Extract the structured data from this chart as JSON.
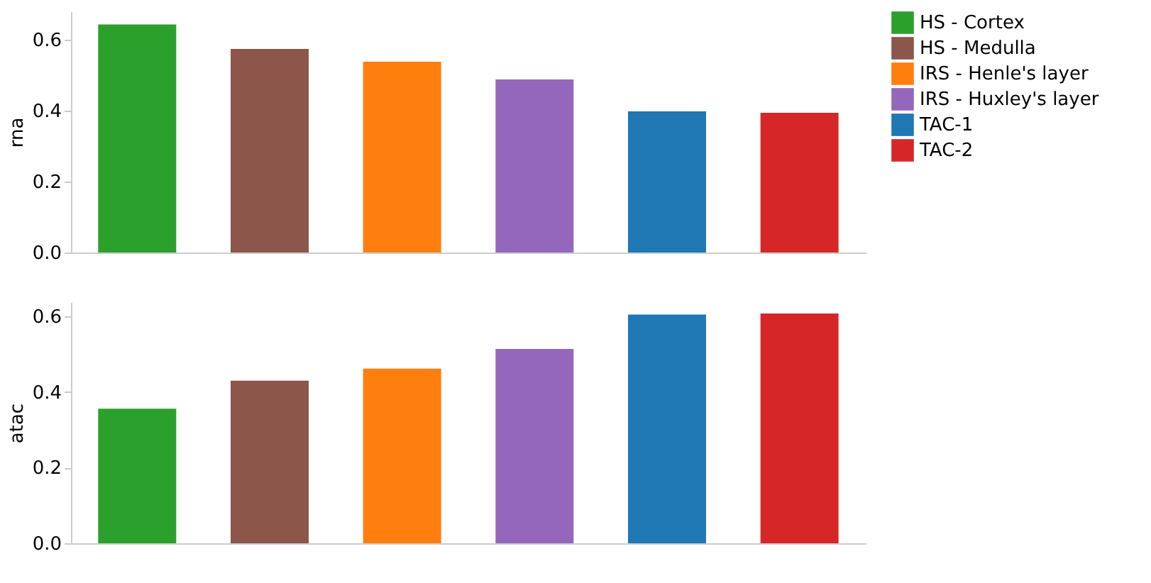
{
  "chart_data": [
    {
      "type": "bar",
      "ylabel": "rna",
      "categories": [
        null,
        null,
        null,
        null,
        null,
        null
      ],
      "series": [
        {
          "name": "HS - Cortex",
          "color": "#2ca02c",
          "values": [
            0.643,
            null,
            null,
            null,
            null,
            null
          ]
        },
        {
          "name": "HS - Medulla",
          "color": "#8c564b",
          "values": [
            null,
            0.574,
            null,
            null,
            null,
            null
          ]
        },
        {
          "name": "IRS - Henle's layer",
          "color": "#ff7f0e",
          "values": [
            null,
            null,
            0.538,
            null,
            null,
            null
          ]
        },
        {
          "name": "IRS - Huxley's layer",
          "color": "#9467bd",
          "values": [
            null,
            null,
            null,
            0.488,
            null,
            null
          ]
        },
        {
          "name": "TAC-1",
          "color": "#1f77b4",
          "values": [
            null,
            null,
            null,
            null,
            0.398,
            null
          ]
        },
        {
          "name": "TAC-2",
          "color": "#d62728",
          "values": [
            null,
            null,
            null,
            null,
            null,
            0.394
          ]
        }
      ],
      "ylim": [
        0,
        0.68
      ],
      "yticks": [
        {
          "value": 0,
          "label": "0.0"
        },
        {
          "value": 0.2,
          "label": "0.2"
        },
        {
          "value": 0.4,
          "label": "0.4"
        },
        {
          "value": 0.6,
          "label": "0.6"
        }
      ],
      "tick_labels": "y",
      "grid": false,
      "legend": "top right"
    },
    {
      "type": "bar",
      "ylabel": "atac",
      "categories": [
        null,
        null,
        null,
        null,
        null,
        null
      ],
      "series": [
        {
          "color": "#2ca02c",
          "values": [
            0.356,
            null,
            null,
            null,
            null,
            null
          ]
        },
        {
          "color": "#8c564b",
          "values": [
            null,
            0.43,
            null,
            null,
            null,
            null
          ]
        },
        {
          "color": "#ff7f0e",
          "values": [
            null,
            null,
            0.462,
            null,
            null,
            null
          ]
        },
        {
          "color": "#9467bd",
          "values": [
            null,
            null,
            null,
            0.514,
            null,
            null
          ]
        },
        {
          "color": "#1f77b4",
          "values": [
            null,
            null,
            null,
            null,
            0.605,
            null
          ]
        },
        {
          "color": "#d62728",
          "values": [
            null,
            null,
            null,
            null,
            null,
            0.608
          ]
        }
      ],
      "ylim": [
        0,
        0.638
      ],
      "yticks": [
        {
          "value": 0,
          "label": "0.0"
        },
        {
          "value": 0.2,
          "label": "0.2"
        },
        {
          "value": 0.4,
          "label": "0.4"
        },
        {
          "value": 0.6,
          "label": "0.6"
        }
      ],
      "tick_labels": "y",
      "grid": false,
      "legend": false
    }
  ]
}
